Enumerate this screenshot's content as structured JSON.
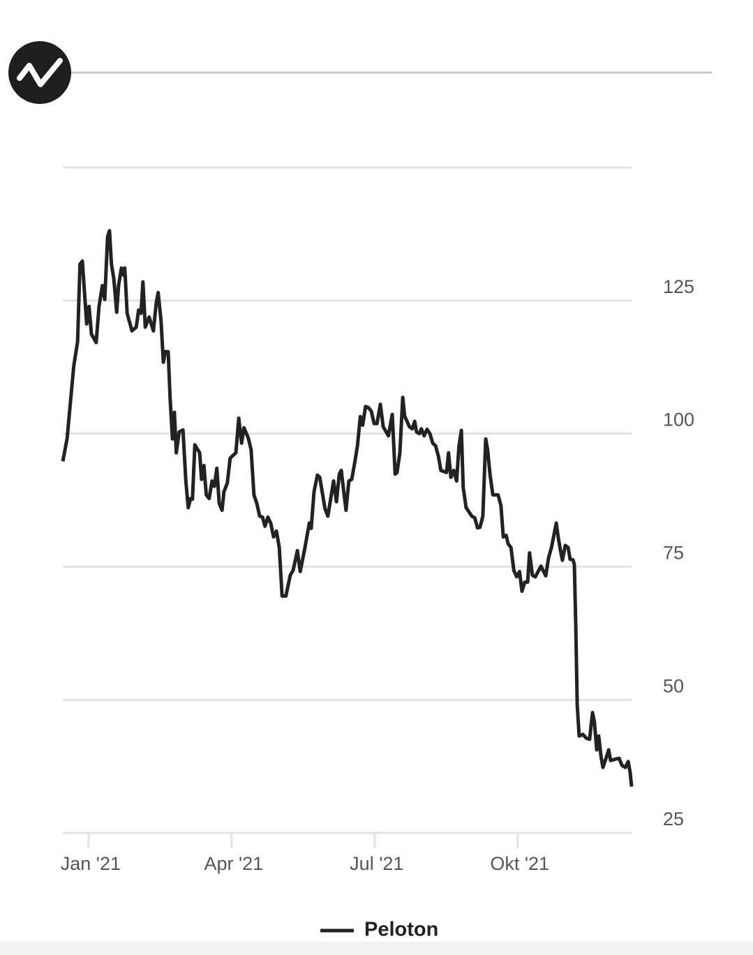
{
  "chart_data": {
    "type": "line",
    "xlim": [
      -0.54,
      11.39
    ],
    "xticks": [
      {
        "value": 0,
        "label": "Jan '21"
      },
      {
        "value": 3,
        "label": "Apr '21"
      },
      {
        "value": 6,
        "label": "Jul '21"
      },
      {
        "value": 9,
        "label": "Okt '21"
      }
    ],
    "ylim": [
      25,
      150
    ],
    "yticks": [
      25,
      50,
      75,
      100,
      125
    ],
    "grid": true,
    "legend": "bottom",
    "x": [
      -0.54,
      -0.45,
      -0.31,
      -0.23,
      -0.18,
      -0.13,
      -0.04,
      0.01,
      0.06,
      0.16,
      0.22,
      0.29,
      0.34,
      0.4,
      0.44,
      0.48,
      0.53,
      0.59,
      0.63,
      0.69,
      0.73,
      0.76,
      0.81,
      0.91,
      1.0,
      1.05,
      1.1,
      1.14,
      1.19,
      1.27,
      1.36,
      1.42,
      1.46,
      1.52,
      1.57,
      1.61,
      1.67,
      1.71,
      1.76,
      1.8,
      1.84,
      1.9,
      1.98,
      2.04,
      2.09,
      2.14,
      2.18,
      2.23,
      2.33,
      2.37,
      2.42,
      2.47,
      2.53,
      2.59,
      2.64,
      2.69,
      2.74,
      2.8,
      2.84,
      2.91,
      2.97,
      3.09,
      3.15,
      3.21,
      3.26,
      3.35,
      3.41,
      3.47,
      3.53,
      3.59,
      3.65,
      3.7,
      3.76,
      3.82,
      3.88,
      3.94,
      4.0,
      4.06,
      4.14,
      4.23,
      4.29,
      4.38,
      4.44,
      4.54,
      4.63,
      4.67,
      4.73,
      4.8,
      4.85,
      4.9,
      4.96,
      5.02,
      5.14,
      5.2,
      5.26,
      5.3,
      5.4,
      5.46,
      5.52,
      5.58,
      5.64,
      5.7,
      5.75,
      5.81,
      5.87,
      5.93,
      5.99,
      6.05,
      6.12,
      6.18,
      6.29,
      6.37,
      6.43,
      6.47,
      6.53,
      6.59,
      6.63,
      6.73,
      6.79,
      6.84,
      6.88,
      6.94,
      6.98,
      7.04,
      7.1,
      7.16,
      7.22,
      7.28,
      7.34,
      7.39,
      7.51,
      7.55,
      7.6,
      7.66,
      7.72,
      7.77,
      7.82,
      7.86,
      7.92,
      8.04,
      8.1,
      8.16,
      8.21,
      8.27,
      8.33,
      8.37,
      8.42,
      8.48,
      8.59,
      8.65,
      8.7,
      8.76,
      8.8,
      8.86,
      8.92,
      8.98,
      9.04,
      9.09,
      9.15,
      9.21,
      9.25,
      9.31,
      9.37,
      9.49,
      9.59,
      9.65,
      9.71,
      9.81,
      9.85,
      9.9,
      9.94,
      10.0,
      10.06,
      10.1,
      10.16,
      10.19,
      10.22,
      10.25,
      10.29,
      10.37,
      10.44,
      10.51,
      10.57,
      10.61,
      10.66,
      10.7,
      10.75,
      10.79,
      10.85,
      10.91,
      10.95,
      11.07,
      11.13,
      11.19,
      11.26,
      11.32,
      11.36,
      11.39
    ],
    "series": [
      {
        "name": "Peloton",
        "color": "#222222",
        "values": [
          94.8,
          99.0,
          112.7,
          117.3,
          131.8,
          132.4,
          120.6,
          123.9,
          118.7,
          117.1,
          123.9,
          127.8,
          125.2,
          137.0,
          138.1,
          131.8,
          129.1,
          122.8,
          127.8,
          131.1,
          129.8,
          131.1,
          122.6,
          119.3,
          120.0,
          123.2,
          122.6,
          128.5,
          120.0,
          121.9,
          119.3,
          124.6,
          126.5,
          121.3,
          113.4,
          115.4,
          115.4,
          106.8,
          99.0,
          104.0,
          96.4,
          100.3,
          100.7,
          91.1,
          86.1,
          87.8,
          87.7,
          97.9,
          96.4,
          91.4,
          94.0,
          88.5,
          87.8,
          91.1,
          90.1,
          93.5,
          86.9,
          85.6,
          89.1,
          90.7,
          95.4,
          96.4,
          102.9,
          98.2,
          101.1,
          99.2,
          97.0,
          88.5,
          86.9,
          84.5,
          84.3,
          82.6,
          84.3,
          83.2,
          80.6,
          81.7,
          78.6,
          69.5,
          69.5,
          73.4,
          74.3,
          78.0,
          74.1,
          78.6,
          83.2,
          82.2,
          89.1,
          92.2,
          91.8,
          89.1,
          85.9,
          84.5,
          91.1,
          87.2,
          92.4,
          93.1,
          85.6,
          91.1,
          91.4,
          94.4,
          97.7,
          103.2,
          101.6,
          105.1,
          104.9,
          104.2,
          101.9,
          101.9,
          105.5,
          101.3,
          99.6,
          103.6,
          92.4,
          92.7,
          96.4,
          106.8,
          103.3,
          101.3,
          100.9,
          102.3,
          100.3,
          100.0,
          100.9,
          99.6,
          100.8,
          100.0,
          98.2,
          97.7,
          95.7,
          93.1,
          92.7,
          96.4,
          91.8,
          93.1,
          91.1,
          97.7,
          100.6,
          89.8,
          86.1,
          84.5,
          84.2,
          82.3,
          82.4,
          84.5,
          99.0,
          97.0,
          92.4,
          88.5,
          88.5,
          86.5,
          80.6,
          80.9,
          79.3,
          78.6,
          74.3,
          73.1,
          74.1,
          70.4,
          72.1,
          72.1,
          77.6,
          73.4,
          73.1,
          75.1,
          73.3,
          76.7,
          78.6,
          83.2,
          80.6,
          78.0,
          76.2,
          79.0,
          78.6,
          76.4,
          76.3,
          75.4,
          63.6,
          49.1,
          43.2,
          43.5,
          42.8,
          42.6,
          47.6,
          45.9,
          40.6,
          43.2,
          39.3,
          37.3,
          38.9,
          40.6,
          38.6,
          38.9,
          39.0,
          37.7,
          37.3,
          38.4,
          36.3,
          33.7
        ]
      }
    ]
  }
}
